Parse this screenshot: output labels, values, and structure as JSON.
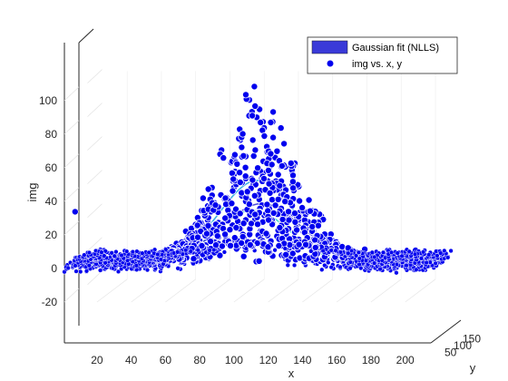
{
  "chart_data": {
    "type": "scatter",
    "subtype": "3d-scatter-with-surface",
    "title": "",
    "xlabel": "x",
    "ylabel": "y",
    "zlabel": "img",
    "x_ticks": [
      "20",
      "40",
      "60",
      "80",
      "100",
      "120",
      "140",
      "160",
      "180",
      "200"
    ],
    "y_ticks": [
      "50",
      "100",
      "150"
    ],
    "z_ticks": [
      "-20",
      "0",
      "20",
      "40",
      "60",
      "80",
      "100"
    ],
    "xlim": [
      1,
      215
    ],
    "ylim": [
      0,
      170
    ],
    "zlim": [
      -20,
      104
    ],
    "grid": true,
    "legend_position": "top-right",
    "series": [
      {
        "name": "Gaussian fit (NLLS)",
        "kind": "surface",
        "color": "#3a3ad8",
        "peak": 48,
        "center_x": 108,
        "sigma_x": 22
      },
      {
        "name": "img vs. x, y",
        "kind": "markers",
        "color": "#0000ee",
        "peak": 100,
        "center_x": 108,
        "sigma_x": 22
      }
    ]
  }
}
